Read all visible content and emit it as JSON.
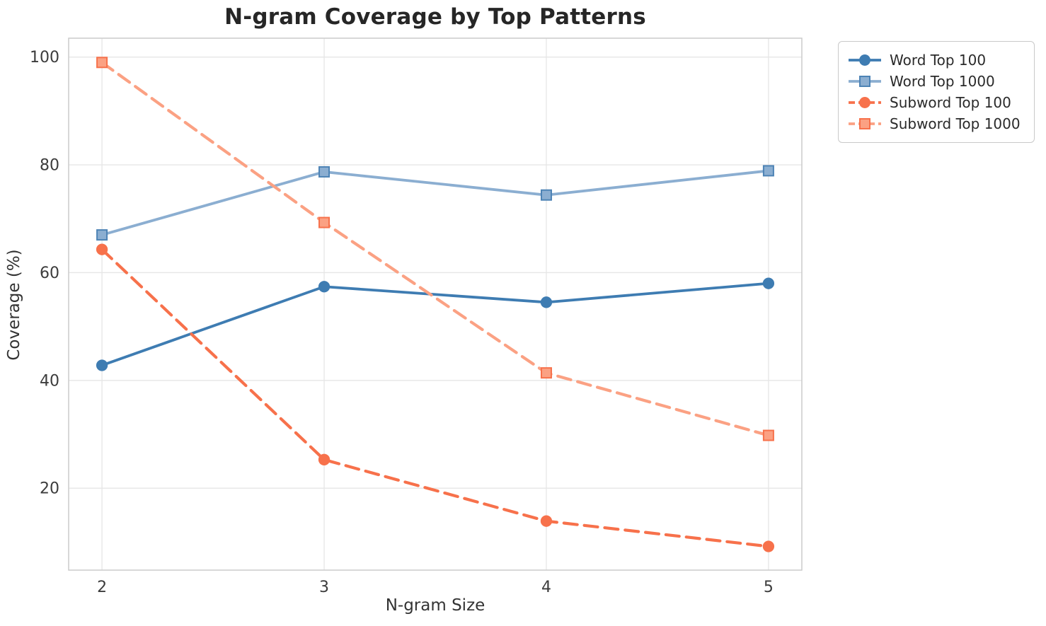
{
  "chart_data": {
    "type": "line",
    "title": "N-gram Coverage by Top Patterns",
    "xlabel": "N-gram Size",
    "ylabel": "Coverage (%)",
    "x": [
      2,
      3,
      4,
      5
    ],
    "xticks": [
      "2",
      "3",
      "4",
      "5"
    ],
    "yticks": [
      20,
      40,
      60,
      80,
      100
    ],
    "xlim": [
      1.85,
      5.15
    ],
    "ylim": [
      4.8,
      103.5
    ],
    "grid": true,
    "legend_position": "upper right outside axes",
    "series": [
      {
        "name": "Word Top 100",
        "values": [
          42.8,
          57.4,
          54.5,
          58.0
        ],
        "color": "#3E7CB2",
        "edge": "#3E7CB2",
        "marker": "circle",
        "line": "solid"
      },
      {
        "name": "Word Top 1000",
        "values": [
          67.0,
          78.7,
          74.4,
          78.9
        ],
        "color": "#8BAED1",
        "edge": "#4D83B5",
        "marker": "square",
        "line": "solid"
      },
      {
        "name": "Subword Top 100",
        "values": [
          64.3,
          25.3,
          13.9,
          9.2
        ],
        "color": "#F7714B",
        "edge": "#F7714B",
        "marker": "circle",
        "line": "dashed"
      },
      {
        "name": "Subword Top 1000",
        "values": [
          99.0,
          69.3,
          41.4,
          29.8
        ],
        "color": "#FBA183",
        "edge": "#F7714B",
        "marker": "square",
        "line": "dashed"
      }
    ],
    "style": {
      "grid_color": "#e6e6e6",
      "spine_color": "#cbcbcb",
      "tick_label_color": "#3c3c3c",
      "title_color": "#262626",
      "background": "#ffffff"
    }
  }
}
